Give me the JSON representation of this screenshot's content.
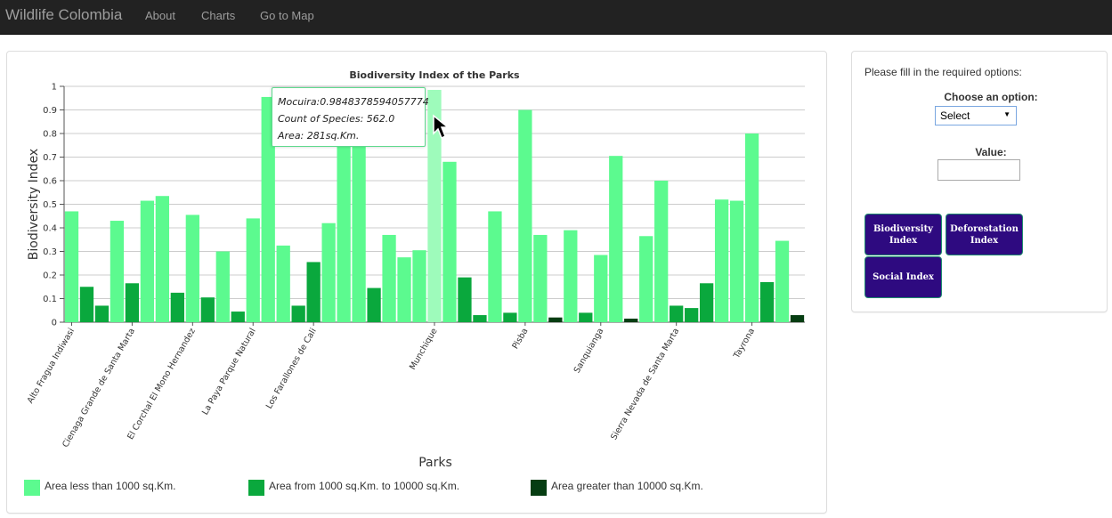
{
  "navbar": {
    "brand": "Wildlife Colombia",
    "links": [
      "About",
      "Charts",
      "Go to Map"
    ]
  },
  "options": {
    "instruction": "Please fill in the required options:",
    "choose_label": "Choose an option:",
    "select_value": "Select",
    "value_label": "Value:",
    "buttons": [
      "Biodiversity Index",
      "Deforestation Index",
      "Social Index"
    ]
  },
  "tooltip": {
    "line1": "Mocuira:0.9848378594057774",
    "line2": "Count of Species: 562.0",
    "line3": "Area: 281sq.Km."
  },
  "colors": {
    "small": "#5cfa8f",
    "medium": "#0aa83d",
    "large": "#063d12",
    "button": "#2e0a80",
    "highlight": "#9efbbb"
  },
  "chart_data": {
    "type": "bar",
    "title": "Biodiversity Index of the Parks",
    "xlabel": "Parks",
    "ylabel": "Biodiversity Index",
    "ylim": [
      0,
      1
    ],
    "yticks": [
      "0",
      "0.1",
      "0.2",
      "0.3",
      "0.4",
      "0.5",
      "0.6",
      "0.7",
      "0.8",
      "0.9",
      "1"
    ],
    "xticks": [
      "Alto Fragua Indiwasi",
      "Cienaga Grande de Santa Marta",
      "El Corchal El Mono Hernandez",
      "La Paya Parque Natural",
      "Los Farallones de Cali",
      "Munchique",
      "Pisba",
      "Sanquianga",
      "Sierra Nevada de Santa Marta",
      "Tayrona"
    ],
    "legend": [
      {
        "label": "Area less than 1000 sq.Km.",
        "group": "small"
      },
      {
        "label": "Area from 1000 sq.Km. to 10000 sq.Km.",
        "group": "medium"
      },
      {
        "label": "Area greater than 10000 sq.Km.",
        "group": "large"
      }
    ],
    "values": [
      0.47,
      0.15,
      0.07,
      0.43,
      0.165,
      0.515,
      0.535,
      0.125,
      0.455,
      0.105,
      0.3,
      0.045,
      0.44,
      0.955,
      0.325,
      0.07,
      0.255,
      0.42,
      0.8,
      0.8,
      0.145,
      0.37,
      0.275,
      0.305,
      0.985,
      0.68,
      0.19,
      0.03,
      0.47,
      0.04,
      0.9,
      0.37,
      0.02,
      0.39,
      0.04,
      0.285,
      0.705,
      0.015,
      0.365,
      0.6,
      0.07,
      0.06,
      0.165,
      0.52,
      0.515,
      0.8,
      0.17,
      0.345,
      0.03
    ],
    "groups": [
      "small",
      "medium",
      "medium",
      "small",
      "medium",
      "small",
      "small",
      "medium",
      "small",
      "medium",
      "small",
      "medium",
      "small",
      "small",
      "small",
      "medium",
      "medium",
      "small",
      "small",
      "small",
      "medium",
      "small",
      "small",
      "small",
      "small",
      "small",
      "medium",
      "medium",
      "small",
      "medium",
      "small",
      "small",
      "large",
      "small",
      "medium",
      "small",
      "small",
      "large",
      "small",
      "small",
      "medium",
      "medium",
      "medium",
      "small",
      "small",
      "small",
      "medium",
      "small",
      "large"
    ],
    "tick_bar_index": [
      0,
      4,
      8,
      12,
      16,
      24,
      30,
      35,
      40,
      45
    ],
    "highlighted_bar": 24
  }
}
